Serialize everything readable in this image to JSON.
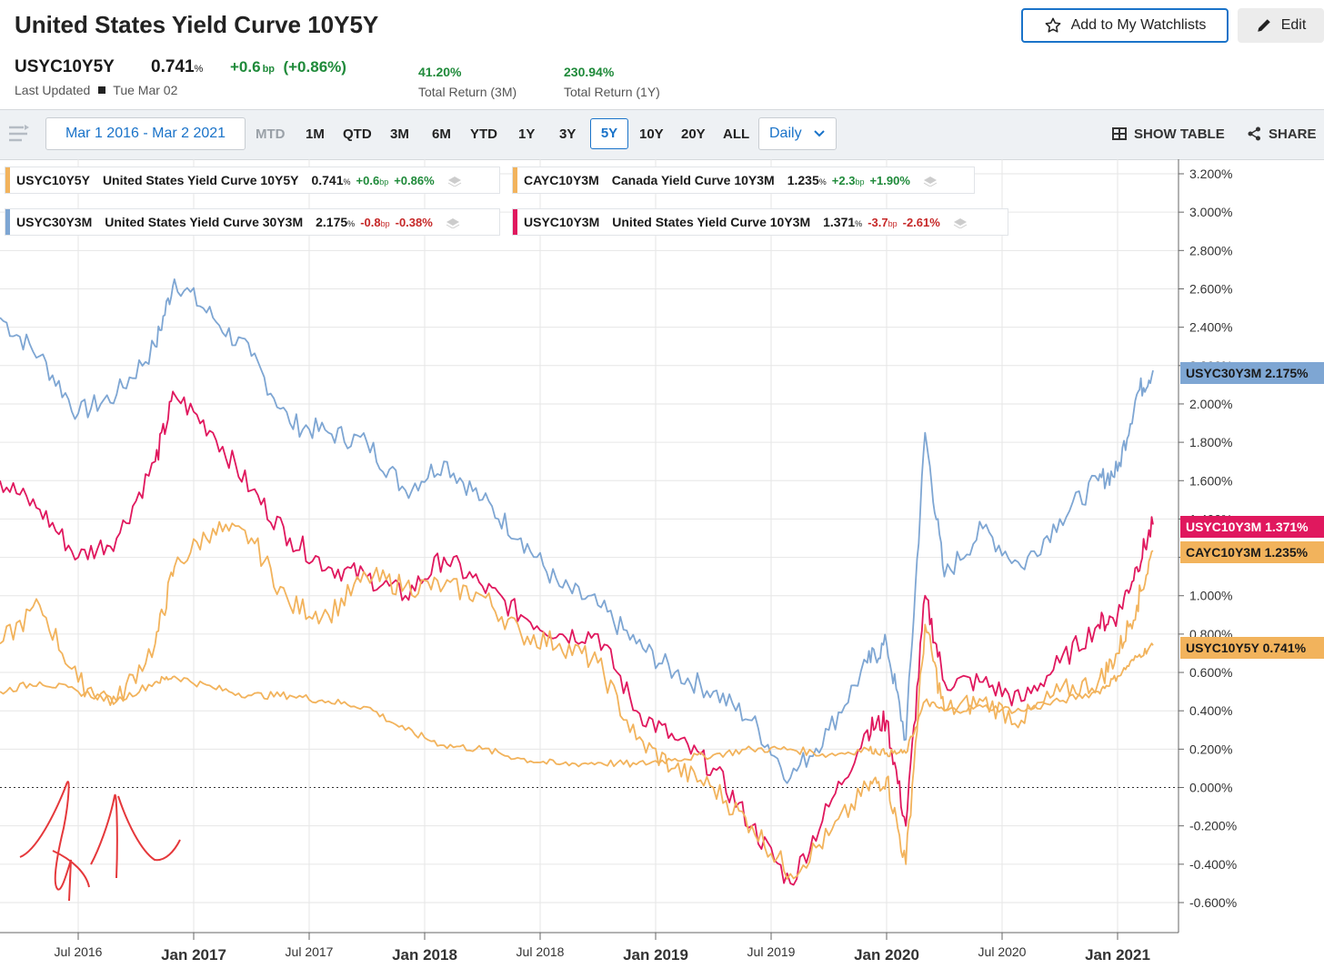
{
  "header": {
    "title": "United States Yield Curve 10Y5Y",
    "ticker": "USYC10Y5Y",
    "price": "0.741",
    "price_unit": "%",
    "change_bp": "+0.6",
    "change_unit": "bp",
    "change_pct": "(+0.86%)",
    "last_updated_label": "Last Updated",
    "last_updated_date": "Tue Mar 02",
    "total_return_3m": "41.20",
    "total_return_3m_label": "Total Return (3M)",
    "total_return_1y": "230.94",
    "total_return_1y_label": "Total Return (1Y)",
    "return_unit": "%",
    "watchlist_button": "Add to My Watchlists",
    "edit_button": "Edit"
  },
  "toolbar": {
    "date_range": "Mar 1 2016 - Mar 2 2021",
    "ranges": [
      "MTD",
      "1M",
      "QTD",
      "3M",
      "6M",
      "YTD",
      "1Y",
      "3Y",
      "5Y",
      "10Y",
      "20Y",
      "ALL"
    ],
    "selected_range": "5Y",
    "frequency": "Daily",
    "show_table": "SHOW TABLE",
    "share": "SHARE"
  },
  "legend": [
    {
      "symbol": "USYC10Y5Y",
      "name": "United States Yield Curve 10Y5Y",
      "value": "0.741",
      "chg": "+0.6",
      "pct": "+0.86%",
      "color": "#f2b35c",
      "dir": "pos"
    },
    {
      "symbol": "CAYC10Y3M",
      "name": "Canada Yield Curve 10Y3M",
      "value": "1.235",
      "chg": "+2.3",
      "pct": "+1.90%",
      "color": "#f2b35c",
      "dir": "pos"
    },
    {
      "symbol": "USYC30Y3M",
      "name": "United States Yield Curve 30Y3M",
      "value": "2.175",
      "chg": "-0.8",
      "pct": "-0.38%",
      "color": "#7ea6d3",
      "dir": "neg"
    },
    {
      "symbol": "USYC10Y3M",
      "name": "United States Yield Curve 10Y3M",
      "value": "1.371",
      "chg": "-3.7",
      "pct": "-2.61%",
      "color": "#e0185e",
      "dir": "neg"
    }
  ],
  "chart_data": {
    "type": "line",
    "x_ticks": [
      "Jul 2016",
      "Jan 2017",
      "Jul 2017",
      "Jan 2018",
      "Jul 2018",
      "Jan 2019",
      "Jul 2019",
      "Jan 2020",
      "Jul 2020",
      "Jan 2021"
    ],
    "x_ticks_major": [
      "Jan 2017",
      "Jan 2018",
      "Jan 2019",
      "Jan 2020",
      "Jan 2021"
    ],
    "y_ticks": [
      "3.200%",
      "3.000%",
      "2.800%",
      "2.600%",
      "2.400%",
      "2.200%",
      "2.000%",
      "1.800%",
      "1.600%",
      "1.400%",
      "1.200%",
      "1.000%",
      "0.800%",
      "0.600%",
      "0.400%",
      "0.200%",
      "0.000%",
      "-0.200%",
      "-0.400%",
      "-0.600%"
    ],
    "ylim": [
      -0.6,
      3.2
    ],
    "xlim": [
      "2016-03-01",
      "2021-03-02"
    ],
    "grid": true,
    "zero_line": "dotted",
    "series": [
      {
        "name": "USYC30Y3M",
        "color": "#7ea6d3",
        "last": "2.175%",
        "x": [
          "2016-03",
          "2016-05",
          "2016-07",
          "2016-09",
          "2016-11",
          "2016-12",
          "2017-02",
          "2017-04",
          "2017-06",
          "2017-08",
          "2017-10",
          "2017-12",
          "2018-02",
          "2018-04",
          "2018-06",
          "2018-08",
          "2018-10",
          "2018-12",
          "2019-02",
          "2019-04",
          "2019-06",
          "2019-08",
          "2019-10",
          "2019-12",
          "2020-01",
          "2020-02",
          "2020-03",
          "2020-04",
          "2020-06",
          "2020-08",
          "2020-10",
          "2020-12",
          "2021-01",
          "2021-02",
          "2021-03"
        ],
        "values": [
          2.45,
          2.25,
          1.95,
          2.05,
          2.3,
          2.65,
          2.45,
          2.25,
          1.9,
          1.85,
          1.8,
          1.55,
          1.7,
          1.5,
          1.3,
          1.05,
          0.95,
          0.75,
          0.6,
          0.5,
          0.35,
          0.05,
          0.3,
          0.65,
          0.75,
          0.25,
          1.85,
          1.1,
          1.35,
          1.15,
          1.4,
          1.6,
          1.65,
          2.05,
          2.175
        ]
      },
      {
        "name": "USYC10Y3M",
        "color": "#e0185e",
        "last": "1.371%",
        "x": [
          "2016-03",
          "2016-05",
          "2016-07",
          "2016-09",
          "2016-11",
          "2016-12",
          "2017-02",
          "2017-04",
          "2017-06",
          "2017-08",
          "2017-10",
          "2017-12",
          "2018-02",
          "2018-04",
          "2018-06",
          "2018-08",
          "2018-10",
          "2018-12",
          "2019-02",
          "2019-04",
          "2019-06",
          "2019-08",
          "2019-10",
          "2019-12",
          "2020-01",
          "2020-02",
          "2020-03",
          "2020-04",
          "2020-06",
          "2020-08",
          "2020-10",
          "2020-12",
          "2021-01",
          "2021-02",
          "2021-03"
        ],
        "values": [
          1.6,
          1.45,
          1.2,
          1.3,
          1.7,
          2.05,
          1.85,
          1.55,
          1.3,
          1.15,
          1.1,
          1.0,
          1.2,
          1.05,
          0.9,
          0.8,
          0.8,
          0.4,
          0.25,
          0.1,
          -0.2,
          -0.5,
          -0.1,
          0.3,
          0.35,
          -0.2,
          1.0,
          0.55,
          0.55,
          0.45,
          0.65,
          0.85,
          0.9,
          1.15,
          1.371
        ]
      },
      {
        "name": "CAYC10Y3M",
        "color": "#f2b35c",
        "last": "1.235%",
        "x": [
          "2016-03",
          "2016-05",
          "2016-07",
          "2016-09",
          "2016-11",
          "2016-12",
          "2017-02",
          "2017-04",
          "2017-06",
          "2017-08",
          "2017-10",
          "2017-12",
          "2018-02",
          "2018-04",
          "2018-06",
          "2018-08",
          "2018-10",
          "2018-12",
          "2019-02",
          "2019-04",
          "2019-06",
          "2019-08",
          "2019-10",
          "2019-12",
          "2020-01",
          "2020-02",
          "2020-03",
          "2020-04",
          "2020-06",
          "2020-08",
          "2020-10",
          "2020-12",
          "2021-01",
          "2021-02",
          "2021-03"
        ],
        "values": [
          0.75,
          0.95,
          0.55,
          0.45,
          0.75,
          1.15,
          1.35,
          1.3,
          0.95,
          0.9,
          1.1,
          1.05,
          1.05,
          1.0,
          0.8,
          0.75,
          0.65,
          0.25,
          0.1,
          0.0,
          -0.2,
          -0.45,
          -0.25,
          0.0,
          0.05,
          -0.4,
          0.85,
          0.4,
          0.45,
          0.35,
          0.5,
          0.55,
          0.7,
          0.95,
          1.235
        ]
      },
      {
        "name": "USYC10Y5Y",
        "color": "#f2b35c",
        "last": "0.741%",
        "x": [
          "2016-03",
          "2016-05",
          "2016-07",
          "2016-09",
          "2016-11",
          "2016-12",
          "2017-02",
          "2017-04",
          "2017-06",
          "2017-08",
          "2017-10",
          "2017-12",
          "2018-02",
          "2018-04",
          "2018-06",
          "2018-08",
          "2018-10",
          "2018-12",
          "2019-02",
          "2019-04",
          "2019-06",
          "2019-08",
          "2019-10",
          "2019-12",
          "2020-01",
          "2020-02",
          "2020-03",
          "2020-04",
          "2020-06",
          "2020-08",
          "2020-10",
          "2020-12",
          "2021-01",
          "2021-02",
          "2021-03"
        ],
        "values": [
          0.5,
          0.55,
          0.5,
          0.45,
          0.55,
          0.58,
          0.52,
          0.48,
          0.48,
          0.45,
          0.42,
          0.3,
          0.22,
          0.2,
          0.15,
          0.12,
          0.13,
          0.12,
          0.15,
          0.17,
          0.2,
          0.2,
          0.17,
          0.2,
          0.18,
          0.18,
          0.45,
          0.4,
          0.42,
          0.4,
          0.45,
          0.5,
          0.58,
          0.68,
          0.741
        ]
      }
    ]
  }
}
